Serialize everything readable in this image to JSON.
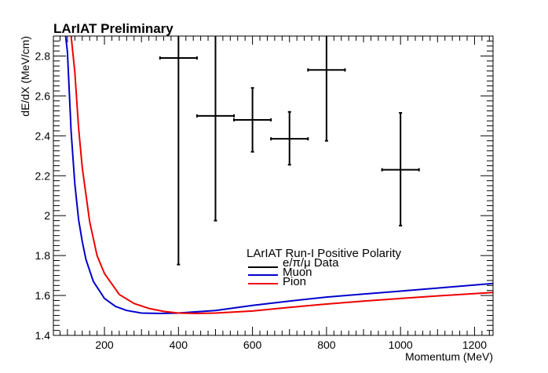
{
  "chart_data": {
    "type": "scatter",
    "title": "LArIAT Preliminary",
    "xlabel": "Momentum (MeV)",
    "ylabel": "dE/dX (MeV/cm)",
    "xlim": [
      62,
      1250
    ],
    "ylim": [
      1.4,
      2.9
    ],
    "x_ticks": [
      200,
      400,
      600,
      800,
      1000,
      1200
    ],
    "y_ticks": [
      1.4,
      1.6,
      1.8,
      2,
      2.2,
      2.4,
      2.6,
      2.8
    ],
    "x_tick_labels": [
      "200",
      "400",
      "600",
      "800",
      "1000",
      "1200"
    ],
    "y_tick_labels": [
      "1.4",
      "1.6",
      "1.8",
      "2",
      "2.2",
      "2.4",
      "2.6",
      "2.8"
    ],
    "grid": false,
    "legend": {
      "title": "LArIAT Run-I Positive Polarity",
      "placement": "bottom-center",
      "entries": [
        "e/π/μ Data",
        "Muon",
        "Pion"
      ]
    },
    "data_points": [
      {
        "x": 400,
        "y": 2.79,
        "xerr": 50,
        "ylow": 1.755,
        "yhigh": 2.9
      },
      {
        "x": 500,
        "y": 2.5,
        "xerr": 50,
        "ylow": 1.975,
        "yhigh": 2.9
      },
      {
        "x": 600,
        "y": 2.48,
        "xerr": 50,
        "ylow": 2.32,
        "yhigh": 2.64
      },
      {
        "x": 700,
        "y": 2.385,
        "xerr": 50,
        "ylow": 2.255,
        "yhigh": 2.52
      },
      {
        "x": 800,
        "y": 2.73,
        "xerr": 50,
        "ylow": 2.375,
        "yhigh": 2.9
      },
      {
        "x": 1000,
        "y": 2.23,
        "xerr": 50,
        "ylow": 1.95,
        "yhigh": 2.515
      }
    ],
    "series": [
      {
        "name": "Muon",
        "color": "#0000cc",
        "x": [
          95,
          100,
          110,
          120,
          130,
          140,
          150,
          170,
          200,
          230,
          260,
          300,
          350,
          400,
          500,
          600,
          700,
          800,
          900,
          1000,
          1100,
          1250
        ],
        "y": [
          2.9,
          2.82,
          2.42,
          2.16,
          1.98,
          1.87,
          1.78,
          1.67,
          1.585,
          1.545,
          1.525,
          1.512,
          1.51,
          1.512,
          1.525,
          1.55,
          1.572,
          1.592,
          1.607,
          1.622,
          1.637,
          1.66
        ]
      },
      {
        "name": "Pion",
        "color": "#ee0000",
        "x": [
          110,
          120,
          130,
          140,
          160,
          180,
          200,
          240,
          280,
          320,
          360,
          400,
          450,
          500,
          600,
          700,
          800,
          900,
          1000,
          1100,
          1250
        ],
        "y": [
          2.9,
          2.72,
          2.44,
          2.24,
          1.97,
          1.8,
          1.71,
          1.605,
          1.56,
          1.535,
          1.52,
          1.512,
          1.51,
          1.512,
          1.522,
          1.54,
          1.557,
          1.572,
          1.585,
          1.598,
          1.615
        ]
      }
    ]
  },
  "colors": {
    "data": "#000000",
    "muon": "#0000cc",
    "pion": "#ee0000",
    "frame": "#000000"
  }
}
